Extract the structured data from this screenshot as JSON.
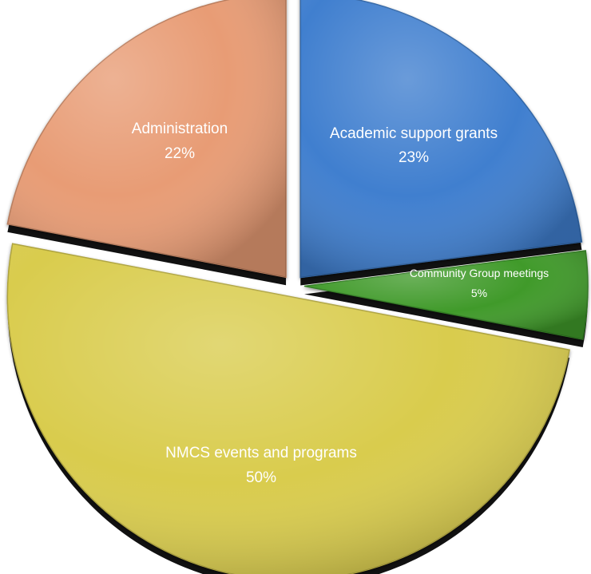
{
  "chart_data": {
    "type": "pie",
    "style": "exploded 3D pie, slices start at 12 o'clock going clockwise",
    "slices": [
      {
        "label": "Academic support grants",
        "value": 23,
        "value_label": "23%",
        "color": "#3f7fcf"
      },
      {
        "label": "Community Group meetings",
        "value": 5,
        "value_label": "5%",
        "color": "#3f9a2c"
      },
      {
        "label": "NMCS events and programs",
        "value": 50,
        "value_label": "50%",
        "color": "#d9cc4e"
      },
      {
        "label": "Administration",
        "value": 22,
        "value_label": "22%",
        "color": "#e89c74"
      }
    ]
  }
}
